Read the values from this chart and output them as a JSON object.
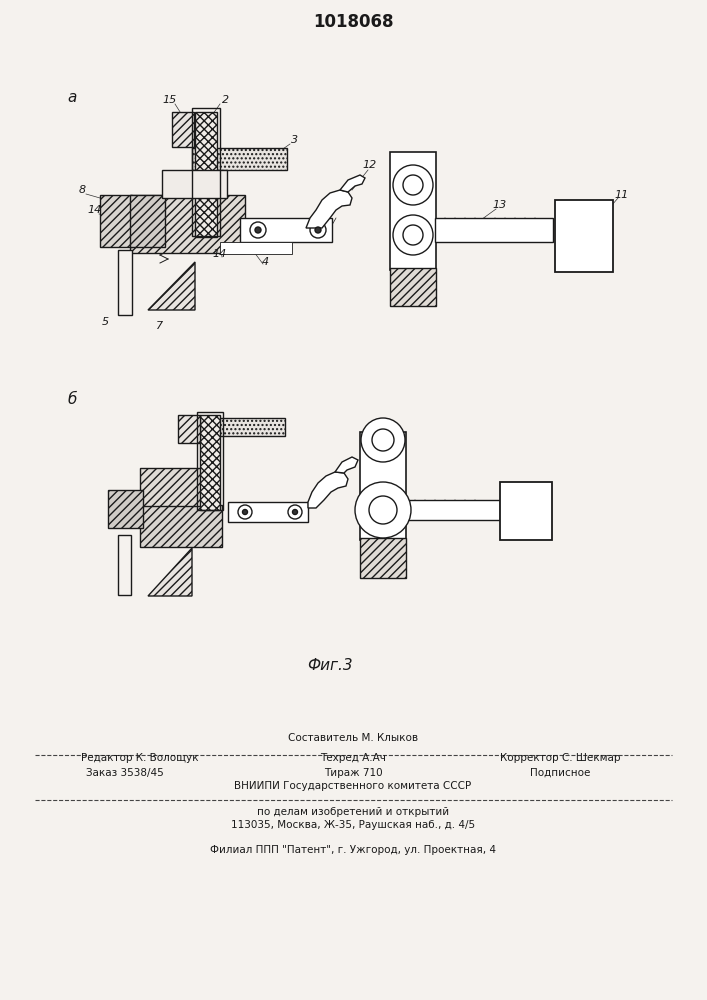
{
  "title": "1018068",
  "bg_color": "#f5f2ee",
  "line_color": "#1a1a1a",
  "hatch_color": "#1a1a1a",
  "footer": {
    "line1": "Составитель М. Клыков",
    "line2_left": "Редактор К. Волощук",
    "line2_mid": "Техред А.Ач",
    "line2_right": "Корректор С. Шекмар",
    "line3_left": "Заказ 3538/45",
    "line3_mid": "Тираж 710",
    "line3_right": "Подписное",
    "line4": "ВНИИПИ Государственного комитета СССР",
    "line5": "по делам изобретений и открытий",
    "line6": "113035, Москва, Ж-35, Раушская наб., д. 4/5",
    "line7": "Филиал ППП \"Патент\", г. Ужгород, ул. Проектная, 4"
  },
  "fig_caption": "Фиг.3",
  "label_a": "а",
  "label_b": "б"
}
